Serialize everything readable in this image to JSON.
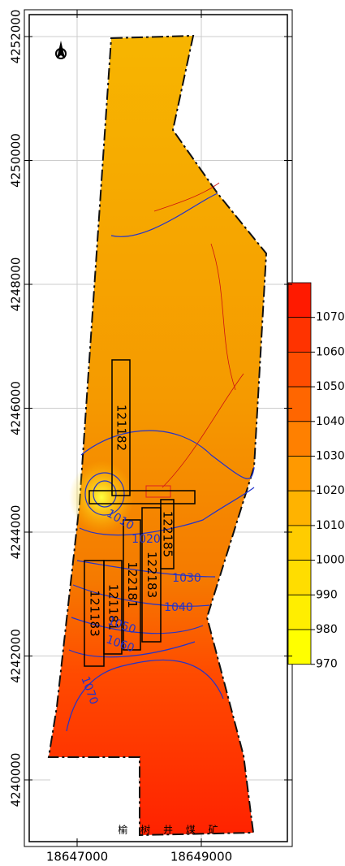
{
  "map": {
    "y_ticks": [
      4252000,
      4250000,
      4248000,
      4246000,
      4244000,
      4242000,
      4240000
    ],
    "x_ticks": [
      18647000,
      18649000
    ],
    "legend": {
      "labels": [
        1070,
        1060,
        1050,
        1040,
        1030,
        1020,
        1010,
        1000,
        990,
        980,
        970
      ],
      "colors": [
        "#ff1a00",
        "#ff3300",
        "#ff4d00",
        "#ff6600",
        "#ff8000",
        "#ff9900",
        "#ffb300",
        "#ffcc00",
        "#ffdd00",
        "#ffee00",
        "#ffff00"
      ]
    },
    "contour_labels": [
      1010,
      1020,
      1030,
      1040,
      1050,
      1060,
      1070
    ],
    "panels": [
      "121182",
      "121183",
      "121181",
      "122181",
      "122183",
      "122185"
    ],
    "mine_name": "榆 树 井 煤 矿"
  }
}
